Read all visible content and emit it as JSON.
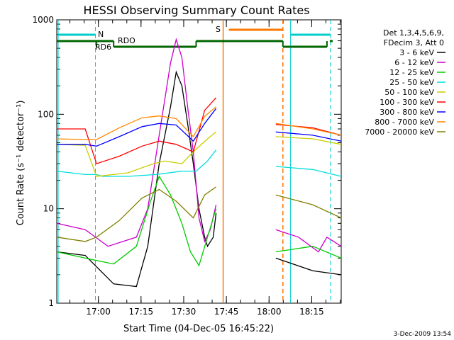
{
  "chart_data": {
    "type": "line",
    "title": "HESSI Observing Summary Count Rates",
    "xlabel": "Start Time (04-Dec-05 16:45:22)",
    "ylabel": "Count Rate (s⁻¹ detector⁻¹)",
    "yscale": "log",
    "ylim": [
      1,
      1000
    ],
    "xlim_minutes": [
      0,
      100
    ],
    "x_ticks": [
      "17:00",
      "17:15",
      "17:30",
      "17:45",
      "18:00",
      "18:15"
    ],
    "x_tick_minutes": [
      14.63,
      29.63,
      44.63,
      59.63,
      74.63,
      89.63
    ],
    "y_ticks": [
      {
        "value": 1,
        "label": "1"
      },
      {
        "value": 10,
        "label": "10"
      },
      {
        "value": 100,
        "label": "100"
      },
      {
        "value": 1000,
        "label": "1000"
      }
    ],
    "legend_header": [
      "Det 1,3,4,5,6,9,",
      "FDecim 3, Att 0"
    ],
    "series": [
      {
        "name": "3 - 6 keV",
        "color": "#000000",
        "points": [
          [
            0,
            3.5
          ],
          [
            10,
            3.2
          ],
          [
            20,
            1.6
          ],
          [
            28,
            1.5
          ],
          [
            32,
            4
          ],
          [
            36,
            30
          ],
          [
            40,
            120
          ],
          [
            42,
            280
          ],
          [
            44,
            200
          ],
          [
            46,
            80
          ],
          [
            48,
            30
          ],
          [
            50,
            10
          ],
          [
            52,
            5
          ],
          [
            53,
            4
          ],
          [
            55,
            5
          ],
          [
            56,
            9
          ],
          [
            67,
            null
          ],
          [
            75,
            null
          ],
          [
            77,
            3
          ],
          [
            90,
            2.2
          ],
          [
            100,
            2
          ]
        ]
      },
      {
        "name": "6 - 12 keV",
        "color": "#cc00cc",
        "points": [
          [
            0,
            7
          ],
          [
            10,
            6
          ],
          [
            18,
            4
          ],
          [
            28,
            5
          ],
          [
            32,
            10
          ],
          [
            36,
            60
          ],
          [
            40,
            350
          ],
          [
            42,
            620
          ],
          [
            44,
            400
          ],
          [
            46,
            120
          ],
          [
            48,
            40
          ],
          [
            50,
            8
          ],
          [
            52,
            4.5
          ],
          [
            54,
            6
          ],
          [
            56,
            11
          ],
          [
            67,
            null
          ],
          [
            77,
            6
          ],
          [
            85,
            5
          ],
          [
            92,
            3.5
          ],
          [
            95,
            5
          ],
          [
            100,
            4
          ]
        ]
      },
      {
        "name": "12 - 25 keV",
        "color": "#00cc00",
        "points": [
          [
            0,
            3.5
          ],
          [
            10,
            3
          ],
          [
            20,
            2.6
          ],
          [
            28,
            4
          ],
          [
            33,
            12
          ],
          [
            36,
            22
          ],
          [
            40,
            14
          ],
          [
            44,
            7
          ],
          [
            47,
            3.5
          ],
          [
            50,
            2.5
          ],
          [
            53,
            5
          ],
          [
            56,
            10
          ],
          [
            67,
            null
          ],
          [
            77,
            3.5
          ],
          [
            90,
            4
          ],
          [
            100,
            3
          ]
        ]
      },
      {
        "name": "25 - 50 keV",
        "color": "#00dddd",
        "points": [
          [
            0,
            25
          ],
          [
            10,
            23
          ],
          [
            14,
            23
          ],
          [
            16,
            22
          ],
          [
            25,
            22
          ],
          [
            35,
            23
          ],
          [
            44,
            25
          ],
          [
            49,
            25
          ],
          [
            53,
            32
          ],
          [
            56,
            42
          ],
          [
            67,
            null
          ],
          [
            77,
            28
          ],
          [
            90,
            26
          ],
          [
            100,
            22
          ]
        ]
      },
      {
        "name": "50 - 100 keV",
        "color": "#cccc00",
        "points": [
          [
            0,
            48
          ],
          [
            10,
            47
          ],
          [
            14,
            22
          ],
          [
            25,
            24
          ],
          [
            34,
            30
          ],
          [
            38,
            32
          ],
          [
            44,
            30
          ],
          [
            48,
            40
          ],
          [
            53,
            55
          ],
          [
            56,
            65
          ],
          [
            67,
            null
          ],
          [
            77,
            58
          ],
          [
            90,
            55
          ],
          [
            100,
            48
          ]
        ]
      },
      {
        "name": "100 - 300 keV",
        "color": "#ff0000",
        "points": [
          [
            0,
            70
          ],
          [
            10,
            70
          ],
          [
            14,
            30
          ],
          [
            22,
            36
          ],
          [
            30,
            46
          ],
          [
            36,
            52
          ],
          [
            42,
            48
          ],
          [
            48,
            40
          ],
          [
            52,
            110
          ],
          [
            56,
            150
          ],
          [
            67,
            null
          ],
          [
            77,
            78
          ],
          [
            90,
            72
          ],
          [
            100,
            60
          ]
        ]
      },
      {
        "name": "300 - 800 keV",
        "color": "#0000ff",
        "points": [
          [
            0,
            48
          ],
          [
            10,
            48
          ],
          [
            14,
            46
          ],
          [
            22,
            58
          ],
          [
            30,
            74
          ],
          [
            36,
            80
          ],
          [
            42,
            77
          ],
          [
            48,
            52
          ],
          [
            52,
            80
          ],
          [
            56,
            115
          ],
          [
            67,
            null
          ],
          [
            77,
            65
          ],
          [
            90,
            60
          ],
          [
            100,
            52
          ]
        ]
      },
      {
        "name": "800 - 7000 keV",
        "color": "#ff8800",
        "points": [
          [
            0,
            55
          ],
          [
            10,
            54
          ],
          [
            14,
            54
          ],
          [
            22,
            72
          ],
          [
            30,
            92
          ],
          [
            36,
            96
          ],
          [
            42,
            90
          ],
          [
            48,
            58
          ],
          [
            52,
            95
          ],
          [
            56,
            120
          ],
          [
            67,
            null
          ],
          [
            77,
            80
          ],
          [
            90,
            70
          ],
          [
            100,
            60
          ]
        ]
      },
      {
        "name": "7000 - 20000 keV",
        "color": "#808000",
        "points": [
          [
            0,
            5
          ],
          [
            10,
            4.5
          ],
          [
            14,
            5
          ],
          [
            22,
            7.5
          ],
          [
            30,
            13
          ],
          [
            36,
            16
          ],
          [
            42,
            12
          ],
          [
            48,
            8
          ],
          [
            52,
            14
          ],
          [
            56,
            17
          ],
          [
            67,
            null
          ],
          [
            77,
            14
          ],
          [
            90,
            11
          ],
          [
            100,
            8
          ]
        ]
      }
    ],
    "annotations": {
      "N_label": "N",
      "S_label": "S",
      "RDO_label": "RDO",
      "RD6_label": "RD6"
    },
    "colors": {
      "night": "#00cccc",
      "saa": "#ff7700",
      "rdo": "#006600"
    }
  },
  "footer": {
    "date": "3-Dec-2009 13:54"
  }
}
